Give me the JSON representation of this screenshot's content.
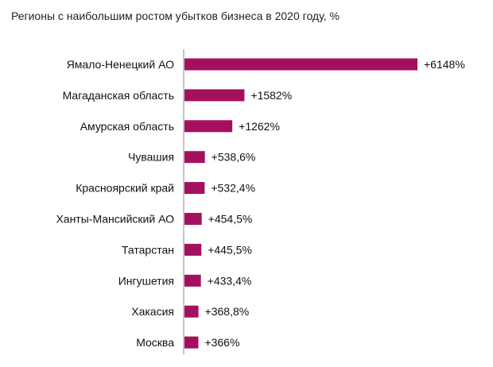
{
  "chart_data": {
    "type": "bar",
    "orientation": "horizontal",
    "title": "Регионы с наибольшим ростом убытков бизнеса в 2020 году, %",
    "xlabel": "",
    "ylabel": "",
    "grid": false,
    "legend": "none",
    "bar_color": "#A5105E",
    "categories": [
      "Ямало-Ненецкий АО",
      "Магаданская область",
      "Амурская область",
      "Чувашия",
      "Красноярский край",
      "Ханты-Мансийский АО",
      "Татарстан",
      "Ингушетия",
      "Хакасия",
      "Москва"
    ],
    "values": [
      6148,
      1582,
      1262,
      538.6,
      532.4,
      454.5,
      445.5,
      433.4,
      368.8,
      366
    ],
    "value_labels": [
      "+6148%",
      "+1582%",
      "+1262%",
      "+538,6%",
      "+532,4%",
      "+454,5%",
      "+445,5%",
      "+433,4%",
      "+368,8%",
      "+366%"
    ]
  }
}
